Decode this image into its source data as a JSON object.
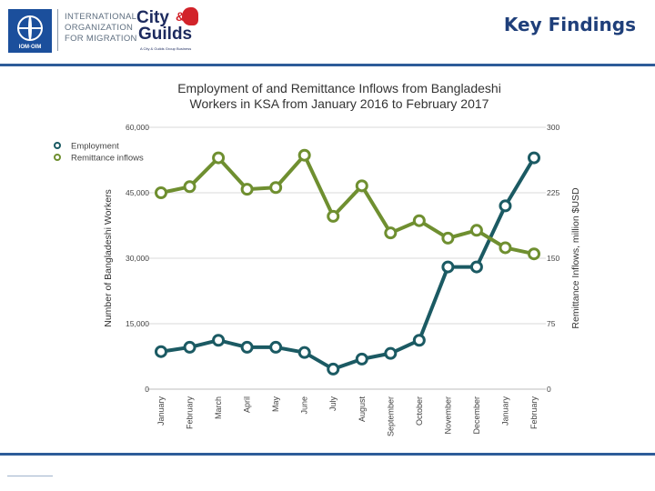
{
  "header": {
    "page_title": "Key Findings",
    "iom": {
      "abbr": "IOM·OIM",
      "lines": [
        "INTERNATIONAL",
        "ORGANIZATION",
        "FOR MIGRATION"
      ]
    },
    "city_guilds": {
      "city": "City",
      "amp": "&",
      "guilds": "Guilds",
      "tagline": "A City & Guilds Group Business"
    }
  },
  "chart_data": {
    "type": "line",
    "title_line1": "Employment of and Remittance Inflows from Bangladeshi",
    "title_line2": "Workers in KSA from January 2016 to February 2017",
    "categories": [
      "January",
      "February",
      "March",
      "April",
      "May",
      "June",
      "July",
      "August",
      "September",
      "October",
      "November",
      "December",
      "January",
      "February"
    ],
    "left_axis": {
      "label": "Number of Bangladeshi Workers",
      "range": [
        0,
        60000
      ],
      "ticks": [
        0,
        15000,
        30000,
        45000,
        60000
      ],
      "tick_labels": [
        "0",
        "15,000",
        "30,000",
        "45,000",
        "60,000"
      ]
    },
    "right_axis": {
      "label": "Remittance Inflows, million $USD",
      "range": [
        0,
        300
      ],
      "ticks": [
        0,
        75,
        150,
        225,
        300
      ],
      "tick_labels": [
        "0",
        "75",
        "150",
        "225",
        "300"
      ]
    },
    "series": [
      {
        "name": "Employment",
        "axis": "left",
        "color": "#1b5a63",
        "values": [
          8600,
          9600,
          11200,
          9600,
          9600,
          8400,
          4600,
          6900,
          8200,
          11200,
          28000,
          28000,
          42000,
          53000
        ]
      },
      {
        "name": "Remittance inflows",
        "axis": "right",
        "color": "#6f8f30",
        "values": [
          225,
          232,
          265,
          229,
          231,
          268,
          198,
          233,
          179,
          193,
          173,
          182,
          162,
          155
        ]
      }
    ],
    "grid": true,
    "legend_position": "top-left"
  }
}
